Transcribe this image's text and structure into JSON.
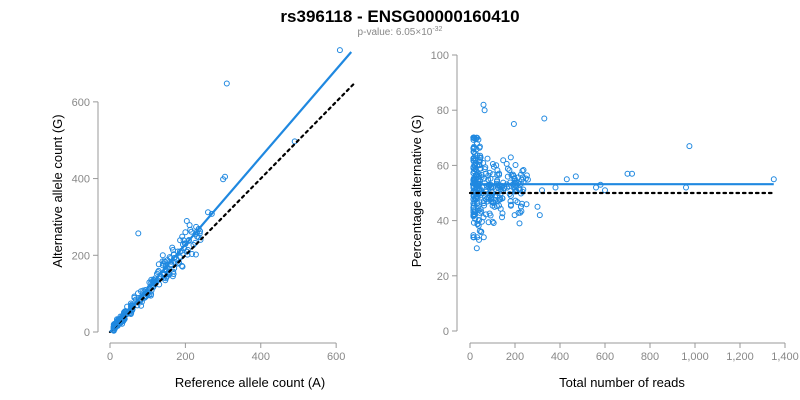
{
  "header": {
    "title": "rs396118 - ENSG00000160410",
    "pvalue_prefix": "p-value: 6.05×10",
    "pvalue_exponent": "-32"
  },
  "colors": {
    "points": "#1f88e0",
    "fit_line": "#1f88e0",
    "reference_line": "#000000"
  },
  "chart_data": [
    {
      "type": "scatter",
      "xlabel": "Reference allele count (A)",
      "ylabel": "Alternative allele count (G)",
      "xlim": [
        0,
        650
      ],
      "ylim": [
        0,
        730
      ],
      "xticks": [
        0,
        200,
        400,
        600
      ],
      "yticks": [
        0,
        200,
        400,
        600
      ],
      "grid": false,
      "fit_line": {
        "x": [
          0,
          640
        ],
        "y": [
          0,
          730
        ]
      },
      "reference_line": {
        "x": [
          0,
          650
        ],
        "y": [
          0,
          650
        ],
        "style": "dotted"
      },
      "outliers": [
        [
          610,
          735
        ],
        [
          310,
          648
        ],
        [
          490,
          497
        ],
        [
          300,
          398
        ],
        [
          305,
          405
        ],
        [
          270,
          308
        ],
        [
          260,
          312
        ],
        [
          240,
          240
        ],
        [
          75,
          257
        ],
        [
          200,
          260
        ],
        [
          170,
          193
        ],
        [
          165,
          220
        ],
        [
          140,
          200
        ]
      ],
      "generated_cluster": {
        "x_range": [
          10,
          240
        ],
        "slope": 1.12,
        "count": 260
      }
    },
    {
      "type": "scatter",
      "xlabel": "Total number of reads",
      "ylabel": "Percentage alternative (G)",
      "xlim": [
        0,
        1400
      ],
      "ylim": [
        0,
        100
      ],
      "xticks": [
        0,
        200,
        400,
        600,
        800,
        1000,
        1200,
        1400
      ],
      "xtick_labels": [
        "0",
        "200",
        "400",
        "600",
        "800",
        "1,000",
        "1,200",
        "1,400"
      ],
      "yticks": [
        0,
        20,
        40,
        60,
        80,
        100
      ],
      "grid": false,
      "fit_line": {
        "x": [
          0,
          1350
        ],
        "y": [
          53.2,
          53.2
        ]
      },
      "reference_line": {
        "x": [
          0,
          1350
        ],
        "y": [
          50,
          50
        ],
        "style": "dotted"
      },
      "outliers": [
        [
          60,
          82
        ],
        [
          65,
          80
        ],
        [
          330,
          77
        ],
        [
          195,
          75
        ],
        [
          975,
          67
        ],
        [
          1350,
          55
        ],
        [
          700,
          57
        ],
        [
          720,
          57
        ],
        [
          580,
          53
        ],
        [
          600,
          51
        ],
        [
          560,
          52
        ],
        [
          470,
          56
        ],
        [
          430,
          55
        ],
        [
          380,
          52
        ],
        [
          320,
          51
        ],
        [
          300,
          45
        ],
        [
          310,
          42
        ],
        [
          220,
          39
        ],
        [
          180,
          47
        ],
        [
          960,
          52
        ],
        [
          30,
          30
        ],
        [
          40,
          33
        ],
        [
          50,
          36
        ]
      ],
      "generated_cluster": {
        "x_range": [
          15,
          260
        ],
        "center": 52,
        "count": 300
      }
    }
  ]
}
